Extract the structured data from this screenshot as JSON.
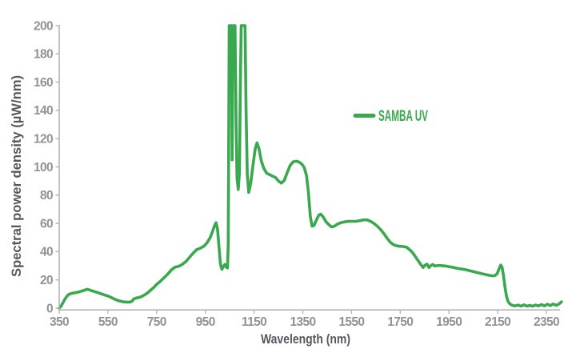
{
  "chart_data": {
    "type": "line",
    "title": "",
    "xlabel": "Wavelength (nm)",
    "ylabel": "Spectral power density (µW/nm)",
    "xlim": [
      350,
      2420
    ],
    "ylim": [
      0,
      200
    ],
    "x_ticks": [
      350,
      550,
      750,
      950,
      1150,
      1350,
      1550,
      1750,
      1950,
      2150,
      2350
    ],
    "y_ticks": [
      0,
      20,
      40,
      60,
      80,
      100,
      120,
      140,
      160,
      180,
      200
    ],
    "grid": false,
    "legend_position": "center-right",
    "series": [
      {
        "name": "SAMBA UV",
        "color": "#39a84f",
        "ymax_clipped": true,
        "clipped_regions_nm": [
          [
            1048,
            1072
          ],
          [
            1097,
            1113
          ]
        ],
        "points": [
          [
            350,
            0
          ],
          [
            358,
            1.5
          ],
          [
            366,
            4
          ],
          [
            374,
            6.5
          ],
          [
            382,
            8.5
          ],
          [
            390,
            9.8
          ],
          [
            400,
            10.4
          ],
          [
            412,
            10.8
          ],
          [
            424,
            11.2
          ],
          [
            436,
            11.8
          ],
          [
            448,
            12.4
          ],
          [
            458,
            13
          ],
          [
            466,
            13.4
          ],
          [
            476,
            12.8
          ],
          [
            490,
            12
          ],
          [
            505,
            11.2
          ],
          [
            520,
            10.3
          ],
          [
            535,
            9.4
          ],
          [
            550,
            8.6
          ],
          [
            565,
            7.4
          ],
          [
            580,
            6.2
          ],
          [
            595,
            5.2
          ],
          [
            610,
            4.6
          ],
          [
            625,
            4.3
          ],
          [
            640,
            4.3
          ],
          [
            650,
            5
          ],
          [
            656,
            6.6
          ],
          [
            666,
            7.2
          ],
          [
            678,
            7.6
          ],
          [
            690,
            8.4
          ],
          [
            702,
            9.6
          ],
          [
            714,
            11
          ],
          [
            726,
            12.8
          ],
          [
            738,
            14.6
          ],
          [
            750,
            16.8
          ],
          [
            765,
            19
          ],
          [
            780,
            21.5
          ],
          [
            795,
            24
          ],
          [
            810,
            27
          ],
          [
            825,
            29
          ],
          [
            840,
            29.6
          ],
          [
            855,
            31
          ],
          [
            870,
            33
          ],
          [
            885,
            36
          ],
          [
            900,
            39
          ],
          [
            915,
            41.5
          ],
          [
            930,
            42.5
          ],
          [
            945,
            44
          ],
          [
            958,
            46.5
          ],
          [
            970,
            50
          ],
          [
            980,
            54.5
          ],
          [
            988,
            58.5
          ],
          [
            994,
            60.5
          ],
          [
            1000,
            56
          ],
          [
            1006,
            43
          ],
          [
            1012,
            31
          ],
          [
            1018,
            27.5
          ],
          [
            1024,
            29.5
          ],
          [
            1030,
            31
          ],
          [
            1036,
            29
          ],
          [
            1041,
            28.5
          ],
          [
            1044,
            45
          ],
          [
            1046,
            120
          ],
          [
            1048,
            200
          ],
          [
            1057,
            200
          ],
          [
            1060,
            105
          ],
          [
            1063,
            200
          ],
          [
            1072,
            200
          ],
          [
            1076,
            130
          ],
          [
            1080,
            92
          ],
          [
            1085,
            84
          ],
          [
            1090,
            96
          ],
          [
            1094,
            160
          ],
          [
            1097,
            200
          ],
          [
            1113,
            200
          ],
          [
            1117,
            140
          ],
          [
            1122,
            95
          ],
          [
            1128,
            82
          ],
          [
            1136,
            88
          ],
          [
            1146,
            102
          ],
          [
            1155,
            113
          ],
          [
            1162,
            117
          ],
          [
            1170,
            113
          ],
          [
            1180,
            104
          ],
          [
            1190,
            99
          ],
          [
            1202,
            95.5
          ],
          [
            1214,
            94.5
          ],
          [
            1226,
            93.5
          ],
          [
            1238,
            92.5
          ],
          [
            1250,
            90
          ],
          [
            1262,
            88.5
          ],
          [
            1274,
            90.5
          ],
          [
            1286,
            96
          ],
          [
            1298,
            101
          ],
          [
            1310,
            103.5
          ],
          [
            1322,
            104
          ],
          [
            1334,
            103.5
          ],
          [
            1346,
            102
          ],
          [
            1356,
            99.5
          ],
          [
            1365,
            94
          ],
          [
            1373,
            82
          ],
          [
            1381,
            65
          ],
          [
            1388,
            58
          ],
          [
            1396,
            58.5
          ],
          [
            1406,
            62.5
          ],
          [
            1416,
            66
          ],
          [
            1424,
            66.5
          ],
          [
            1434,
            64.5
          ],
          [
            1446,
            61
          ],
          [
            1458,
            59
          ],
          [
            1468,
            57.5
          ],
          [
            1480,
            58
          ],
          [
            1492,
            59.5
          ],
          [
            1506,
            60.5
          ],
          [
            1520,
            61
          ],
          [
            1536,
            61.5
          ],
          [
            1552,
            61.5
          ],
          [
            1568,
            61.5
          ],
          [
            1584,
            62
          ],
          [
            1600,
            62.5
          ],
          [
            1614,
            62.5
          ],
          [
            1628,
            61.5
          ],
          [
            1642,
            60
          ],
          [
            1656,
            58
          ],
          [
            1670,
            55.5
          ],
          [
            1684,
            52.5
          ],
          [
            1698,
            49
          ],
          [
            1710,
            46.5
          ],
          [
            1722,
            45
          ],
          [
            1734,
            44.2
          ],
          [
            1748,
            43.8
          ],
          [
            1762,
            43.6
          ],
          [
            1776,
            43.2
          ],
          [
            1788,
            41.5
          ],
          [
            1800,
            39.5
          ],
          [
            1812,
            36.5
          ],
          [
            1824,
            33.5
          ],
          [
            1834,
            31
          ],
          [
            1844,
            28.8
          ],
          [
            1852,
            30.5
          ],
          [
            1860,
            31.2
          ],
          [
            1868,
            28.8
          ],
          [
            1876,
            30.2
          ],
          [
            1884,
            31
          ],
          [
            1892,
            29.8
          ],
          [
            1902,
            30.2
          ],
          [
            1914,
            30.2
          ],
          [
            1926,
            30
          ],
          [
            1938,
            29.8
          ],
          [
            1950,
            29.4
          ],
          [
            1964,
            29
          ],
          [
            1978,
            28.4
          ],
          [
            1992,
            28
          ],
          [
            2006,
            27.6
          ],
          [
            2020,
            27.2
          ],
          [
            2034,
            26.6
          ],
          [
            2048,
            26
          ],
          [
            2062,
            25.4
          ],
          [
            2076,
            24.8
          ],
          [
            2090,
            24.2
          ],
          [
            2104,
            23.6
          ],
          [
            2118,
            23.2
          ],
          [
            2130,
            22.9
          ],
          [
            2140,
            23.2
          ],
          [
            2148,
            24.5
          ],
          [
            2156,
            28
          ],
          [
            2162,
            30.5
          ],
          [
            2168,
            29
          ],
          [
            2174,
            23
          ],
          [
            2180,
            15
          ],
          [
            2186,
            8.5
          ],
          [
            2192,
            5
          ],
          [
            2200,
            3
          ],
          [
            2210,
            2
          ],
          [
            2222,
            1.6
          ],
          [
            2234,
            2.2
          ],
          [
            2246,
            1.4
          ],
          [
            2258,
            2.4
          ],
          [
            2270,
            1.4
          ],
          [
            2282,
            2
          ],
          [
            2294,
            1.4
          ],
          [
            2306,
            2.2
          ],
          [
            2318,
            1.6
          ],
          [
            2330,
            2.6
          ],
          [
            2342,
            1.6
          ],
          [
            2354,
            2.8
          ],
          [
            2366,
            1.8
          ],
          [
            2378,
            3
          ],
          [
            2390,
            2
          ],
          [
            2402,
            3
          ],
          [
            2412,
            4.5
          ]
        ]
      }
    ]
  },
  "legend": {
    "label": "SAMBA UV"
  },
  "colors": {
    "series_green": "#39a84f",
    "tick_label": "#8f9296",
    "axis_title": "#55585d",
    "axis_line": "#b3b5b8",
    "background": "#ffffff"
  }
}
